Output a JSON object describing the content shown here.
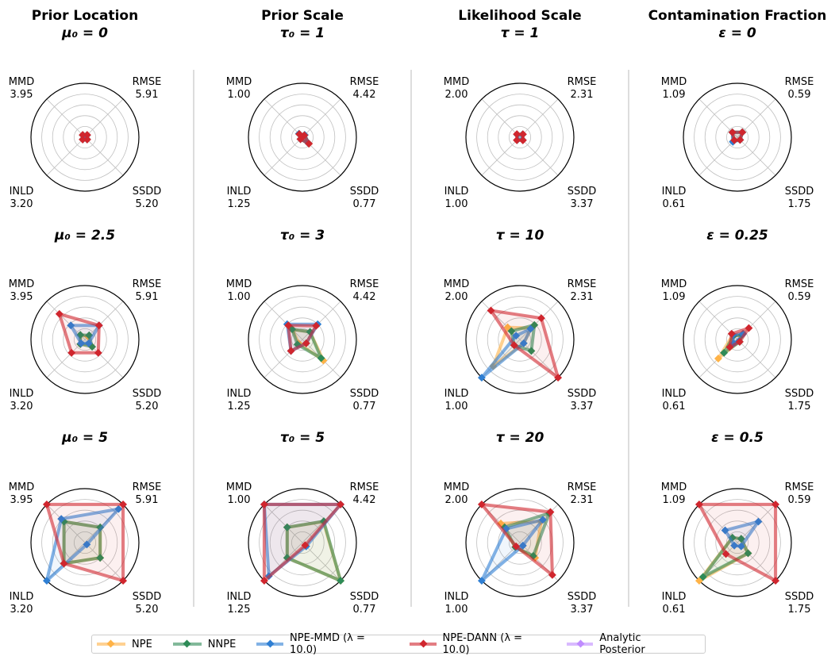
{
  "legend": {
    "items": [
      {
        "label": "NPE",
        "color": "#ffb347"
      },
      {
        "label": "NNPE",
        "color": "#2e8b57"
      },
      {
        "label": "NPE-MMD (λ = 10.0)",
        "color": "#2f7fd3"
      },
      {
        "label": "NPE-DANN (λ = 10.0)",
        "color": "#d0262e"
      },
      {
        "label": "Analytic Posterior",
        "color": "#c08cff"
      }
    ]
  },
  "chart_data": [
    {
      "type": "radar",
      "title": "Prior Location",
      "columns": [
        {
          "title": "Prior Location",
          "axes": [
            {
              "name": "RMSE",
              "max": "5.91"
            },
            {
              "name": "SSDD",
              "max": "5.20"
            },
            {
              "name": "INLD",
              "max": "3.20"
            },
            {
              "name": "MMD",
              "max": "3.95"
            }
          ],
          "panels": [
            {
              "subtitle": "μ₀ = 0",
              "series": [
                {
                  "name": "NPE",
                  "values": [
                    0.05,
                    0.05,
                    0.05,
                    0.05
                  ]
                },
                {
                  "name": "NNPE",
                  "values": [
                    0.05,
                    0.05,
                    0.05,
                    0.05
                  ]
                },
                {
                  "name": "NPE-MMD (λ = 10.0)",
                  "values": [
                    0.05,
                    0.05,
                    0.05,
                    0.05
                  ]
                },
                {
                  "name": "NPE-DANN (λ = 10.0)",
                  "values": [
                    0.06,
                    0.06,
                    0.06,
                    0.06
                  ]
                }
              ]
            },
            {
              "subtitle": "μ₀ = 2.5",
              "series": [
                {
                  "name": "NPE",
                  "values": [
                    0.08,
                    0.13,
                    0.12,
                    0.12
                  ]
                },
                {
                  "name": "NNPE",
                  "values": [
                    0.11,
                    0.19,
                    0.12,
                    0.12
                  ]
                },
                {
                  "name": "NPE-MMD (λ = 10.0)",
                  "values": [
                    0.37,
                    0.1,
                    0.1,
                    0.37
                  ]
                },
                {
                  "name": "NPE-DANN (λ = 10.0)",
                  "values": [
                    0.37,
                    0.35,
                    0.35,
                    0.67
                  ]
                }
              ]
            },
            {
              "subtitle": "μ₀ = 5",
              "series": [
                {
                  "name": "NPE",
                  "values": [
                    0.4,
                    0.4,
                    0.55,
                    0.55
                  ]
                },
                {
                  "name": "NNPE",
                  "values": [
                    0.4,
                    0.4,
                    0.55,
                    0.55
                  ]
                },
                {
                  "name": "NPE-MMD (λ = 10.0)",
                  "values": [
                    0.88,
                    0.05,
                    1.0,
                    0.62
                  ]
                },
                {
                  "name": "NPE-DANN (λ = 10.0)",
                  "values": [
                    1.0,
                    1.0,
                    0.55,
                    1.0
                  ]
                }
              ]
            }
          ]
        }
      ]
    },
    {
      "type": "radar",
      "title": "Prior Scale",
      "columns": [
        {
          "title": "Prior Scale",
          "axes": [
            {
              "name": "RMSE",
              "max": "4.42"
            },
            {
              "name": "SSDD",
              "max": "0.77"
            },
            {
              "name": "INLD",
              "max": "1.25"
            },
            {
              "name": "MMD",
              "max": "1.00"
            }
          ],
          "panels": [
            {
              "subtitle": "τ₀ = 1",
              "series": [
                {
                  "name": "NPE",
                  "values": [
                    0.06,
                    0.17,
                    0.05,
                    0.09
                  ]
                },
                {
                  "name": "NNPE",
                  "values": [
                    0.06,
                    0.16,
                    0.05,
                    0.09
                  ]
                },
                {
                  "name": "NPE-MMD (λ = 10.0)",
                  "values": [
                    0.06,
                    0.16,
                    0.05,
                    0.09
                  ]
                },
                {
                  "name": "NPE-DANN (λ = 10.0)",
                  "values": [
                    0.05,
                    0.17,
                    0.05,
                    0.08
                  ]
                }
              ]
            },
            {
              "subtitle": "τ₀ = 3",
              "series": [
                {
                  "name": "NPE",
                  "values": [
                    0.2,
                    0.55,
                    0.1,
                    0.26
                  ]
                },
                {
                  "name": "NNPE",
                  "values": [
                    0.2,
                    0.49,
                    0.13,
                    0.27
                  ]
                },
                {
                  "name": "NPE-MMD (λ = 10.0)",
                  "values": [
                    0.4,
                    0.1,
                    0.3,
                    0.4
                  ]
                },
                {
                  "name": "NPE-DANN (λ = 10.0)",
                  "values": [
                    0.36,
                    0.1,
                    0.3,
                    0.37
                  ]
                }
              ]
            },
            {
              "subtitle": "τ₀ = 5",
              "series": [
                {
                  "name": "NPE",
                  "values": [
                    0.55,
                    1.0,
                    0.4,
                    0.4
                  ]
                },
                {
                  "name": "NNPE",
                  "values": [
                    0.56,
                    1.0,
                    0.4,
                    0.4
                  ]
                },
                {
                  "name": "NPE-MMD (λ = 10.0)",
                  "values": [
                    1.0,
                    0.1,
                    0.88,
                    1.0
                  ]
                },
                {
                  "name": "NPE-DANN (λ = 10.0)",
                  "values": [
                    1.0,
                    0.07,
                    1.0,
                    1.0
                  ]
                }
              ]
            }
          ]
        }
      ]
    },
    {
      "type": "radar",
      "title": "Likelihood Scale",
      "columns": [
        {
          "title": "Likelihood Scale",
          "axes": [
            {
              "name": "RMSE",
              "max": "2.31"
            },
            {
              "name": "SSDD",
              "max": "3.37"
            },
            {
              "name": "INLD",
              "max": "1.00"
            },
            {
              "name": "MMD",
              "max": "2.00"
            }
          ],
          "panels": [
            {
              "subtitle": "τ = 1",
              "series": [
                {
                  "name": "NPE",
                  "values": [
                    0.07,
                    0.07,
                    0.07,
                    0.07
                  ]
                },
                {
                  "name": "NNPE",
                  "values": [
                    0.07,
                    0.07,
                    0.07,
                    0.07
                  ]
                },
                {
                  "name": "NPE-MMD (λ = 10.0)",
                  "values": [
                    0.07,
                    0.07,
                    0.07,
                    0.07
                  ]
                },
                {
                  "name": "NPE-DANN (λ = 10.0)",
                  "values": [
                    0.08,
                    0.08,
                    0.08,
                    0.08
                  ]
                }
              ]
            },
            {
              "subtitle": "τ = 10",
              "series": [
                {
                  "name": "NPE",
                  "values": [
                    0.3,
                    0.1,
                    0.7,
                    0.32
                  ]
                },
                {
                  "name": "NNPE",
                  "values": [
                    0.38,
                    0.3,
                    0.15,
                    0.22
                  ]
                },
                {
                  "name": "NPE-MMD (λ = 10.0)",
                  "values": [
                    0.28,
                    0.1,
                    1.0,
                    0.1
                  ]
                },
                {
                  "name": "NPE-DANN (λ = 10.0)",
                  "values": [
                    0.56,
                    1.0,
                    0.15,
                    0.76
                  ]
                }
              ]
            },
            {
              "subtitle": "τ = 20",
              "series": [
                {
                  "name": "NPE",
                  "values": [
                    0.56,
                    0.4,
                    0.12,
                    0.5
                  ]
                },
                {
                  "name": "NNPE",
                  "values": [
                    0.77,
                    0.35,
                    0.12,
                    0.4
                  ]
                },
                {
                  "name": "NPE-MMD (λ = 10.0)",
                  "values": [
                    0.6,
                    0.08,
                    1.0,
                    0.36
                  ]
                },
                {
                  "name": "NPE-DANN (λ = 10.0)",
                  "values": [
                    0.8,
                    0.85,
                    0.1,
                    1.0
                  ]
                }
              ]
            }
          ]
        }
      ]
    },
    {
      "type": "radar",
      "title": "Contamination Fraction",
      "columns": [
        {
          "title": "Contamination Fraction",
          "axes": [
            {
              "name": "RMSE",
              "max": "0.59"
            },
            {
              "name": "SSDD",
              "max": "1.75"
            },
            {
              "name": "INLD",
              "max": "0.61"
            },
            {
              "name": "MMD",
              "max": "1.09"
            }
          ],
          "panels": [
            {
              "subtitle": "ε = 0",
              "series": [
                {
                  "name": "NPE",
                  "values": [
                    0.13,
                    0.07,
                    0.1,
                    0.13
                  ]
                },
                {
                  "name": "NNPE",
                  "values": [
                    0.13,
                    0.07,
                    0.1,
                    0.13
                  ]
                },
                {
                  "name": "NPE-MMD (λ = 10.0)",
                  "values": [
                    0.13,
                    0.07,
                    0.12,
                    0.13
                  ]
                },
                {
                  "name": "NPE-DANN (λ = 10.0)",
                  "values": [
                    0.13,
                    0.07,
                    0.08,
                    0.13
                  ]
                }
              ]
            },
            {
              "subtitle": "ε = 0.25",
              "series": [
                {
                  "name": "NPE",
                  "values": [
                    0.1,
                    0.05,
                    0.5,
                    0.12
                  ]
                },
                {
                  "name": "NNPE",
                  "values": [
                    0.12,
                    0.06,
                    0.35,
                    0.1
                  ]
                },
                {
                  "name": "NPE-MMD (λ = 10.0)",
                  "values": [
                    0.15,
                    0.04,
                    0.1,
                    0.12
                  ]
                },
                {
                  "name": "NPE-DANN (λ = 10.0)",
                  "values": [
                    0.3,
                    0.06,
                    0.2,
                    0.15
                  ]
                }
              ]
            },
            {
              "subtitle": "ε = 0.5",
              "series": [
                {
                  "name": "NPE",
                  "values": [
                    0.1,
                    0.28,
                    1.0,
                    0.13
                  ]
                },
                {
                  "name": "NNPE",
                  "values": [
                    0.1,
                    0.28,
                    0.9,
                    0.13
                  ]
                },
                {
                  "name": "NPE-MMD (λ = 10.0)",
                  "values": [
                    0.55,
                    0.1,
                    0.08,
                    0.32
                  ]
                },
                {
                  "name": "NPE-DANN (λ = 10.0)",
                  "values": [
                    1.0,
                    1.0,
                    0.3,
                    1.0
                  ]
                }
              ]
            }
          ]
        }
      ]
    }
  ]
}
